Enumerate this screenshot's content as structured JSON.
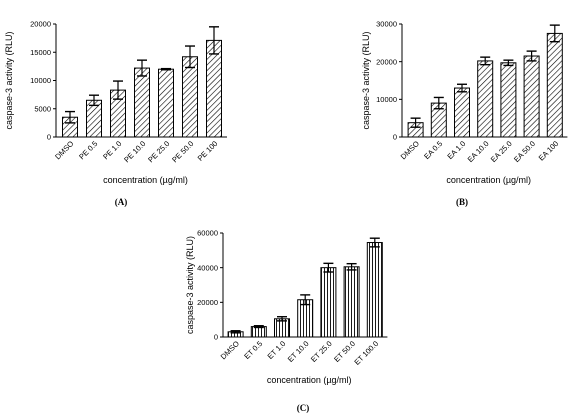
{
  "chart_data": [
    {
      "type": "bar",
      "panel_label": "(A)",
      "categories": [
        "DMSO",
        "PE 0.5",
        "PE 1.0",
        "PE 10.0",
        "PE 25.0",
        "PE 50.0",
        "PE 100"
      ],
      "values": [
        3500,
        6500,
        8300,
        12200,
        12000,
        14200,
        17100
      ],
      "errors": [
        1000,
        900,
        1600,
        1400,
        100,
        1900,
        2400
      ],
      "xlabel": "concentration (µg/ml)",
      "ylabel": "caspase-3 activity (RLU)",
      "ylim": [
        0,
        20000
      ],
      "yticks": [
        "0",
        "5000",
        "10000",
        "15000",
        "20000"
      ],
      "hatch": "diagonal"
    },
    {
      "type": "bar",
      "panel_label": "(B)",
      "categories": [
        "DMSO",
        "EA 0.5",
        "EA 1.0",
        "EA 10.0",
        "EA 25.0",
        "EA 50.0",
        "EA 100"
      ],
      "values": [
        3800,
        9000,
        13000,
        20200,
        19700,
        21500,
        27500
      ],
      "errors": [
        1200,
        1500,
        1000,
        1000,
        700,
        1300,
        2200
      ],
      "xlabel": "concentration (µg/ml)",
      "ylabel": "caspase-3 activity (RLU)",
      "ylim": [
        0,
        30000
      ],
      "yticks": [
        "0",
        "10000",
        "20000",
        "30000"
      ],
      "hatch": "diagonal"
    },
    {
      "type": "bar",
      "panel_label": "(C)",
      "categories": [
        "DMSO",
        "ET 0.5",
        "ET 1.0",
        "ET 10.0",
        "ET 25.0",
        "ET 50.0",
        "ET 100.0"
      ],
      "values": [
        3000,
        6000,
        10500,
        21500,
        40000,
        40500,
        54500
      ],
      "errors": [
        600,
        500,
        1200,
        2800,
        2500,
        1800,
        2500
      ],
      "xlabel": "concentration (µg/ml)",
      "ylabel": "caspase-3 activity (RLU)",
      "ylim": [
        0,
        60000
      ],
      "yticks": [
        "0",
        "20000",
        "40000",
        "60000"
      ],
      "hatch": "vertical"
    }
  ]
}
